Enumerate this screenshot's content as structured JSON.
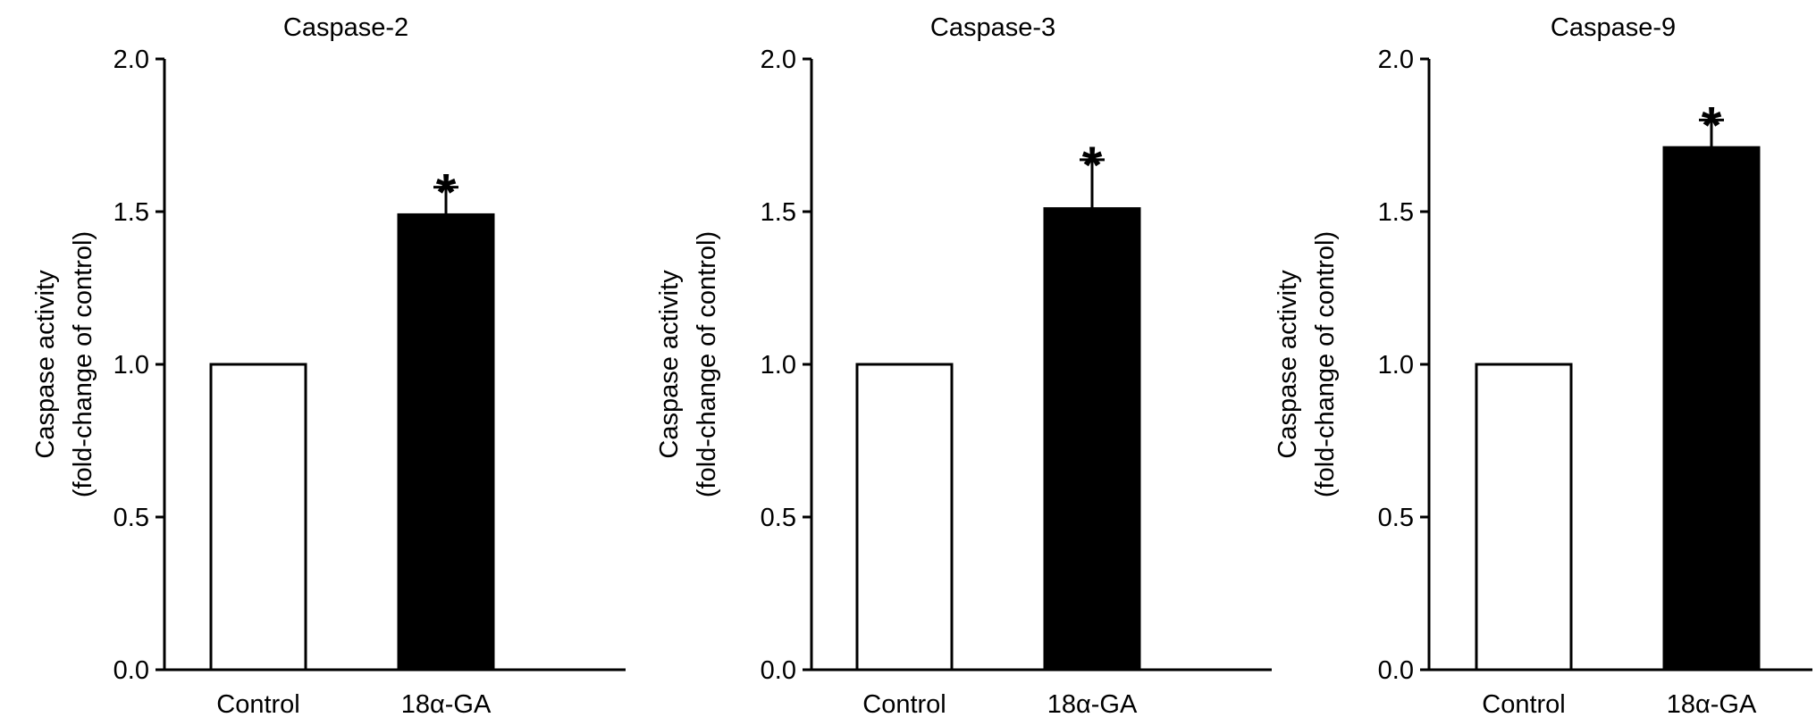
{
  "chart_data": [
    {
      "type": "bar",
      "title": "Caspase-2",
      "ylabel_lines": [
        "Caspase activity",
        "(fold-change of control)"
      ],
      "categories": [
        "Control",
        "18α-GA"
      ],
      "values": [
        1.0,
        1.49
      ],
      "errors": [
        0,
        0.09
      ],
      "significance": [
        "",
        "*"
      ],
      "bar_colors": [
        "#ffffff",
        "#000000"
      ],
      "ylim": [
        0,
        2.0
      ],
      "yticks": [
        "0.0",
        "0.5",
        "1.0",
        "1.5",
        "2.0"
      ]
    },
    {
      "type": "bar",
      "title": "Caspase-3",
      "ylabel_lines": [
        "Caspase activity",
        "(fold-change of control)"
      ],
      "categories": [
        "Control",
        "18α-GA"
      ],
      "values": [
        1.0,
        1.51
      ],
      "errors": [
        0,
        0.16
      ],
      "significance": [
        "",
        "*"
      ],
      "bar_colors": [
        "#ffffff",
        "#000000"
      ],
      "ylim": [
        0,
        2.0
      ],
      "yticks": [
        "0.0",
        "0.5",
        "1.0",
        "1.5",
        "2.0"
      ]
    },
    {
      "type": "bar",
      "title": "Caspase-9",
      "ylabel_lines": [
        "Caspase activity",
        "(fold-change of control)"
      ],
      "categories": [
        "Control",
        "18α-GA"
      ],
      "values": [
        1.0,
        1.71
      ],
      "errors": [
        0,
        0.09
      ],
      "significance": [
        "",
        "*"
      ],
      "bar_colors": [
        "#ffffff",
        "#000000"
      ],
      "ylim": [
        0,
        2.0
      ],
      "yticks": [
        "0.0",
        "0.5",
        "1.0",
        "1.5",
        "2.0"
      ]
    }
  ]
}
